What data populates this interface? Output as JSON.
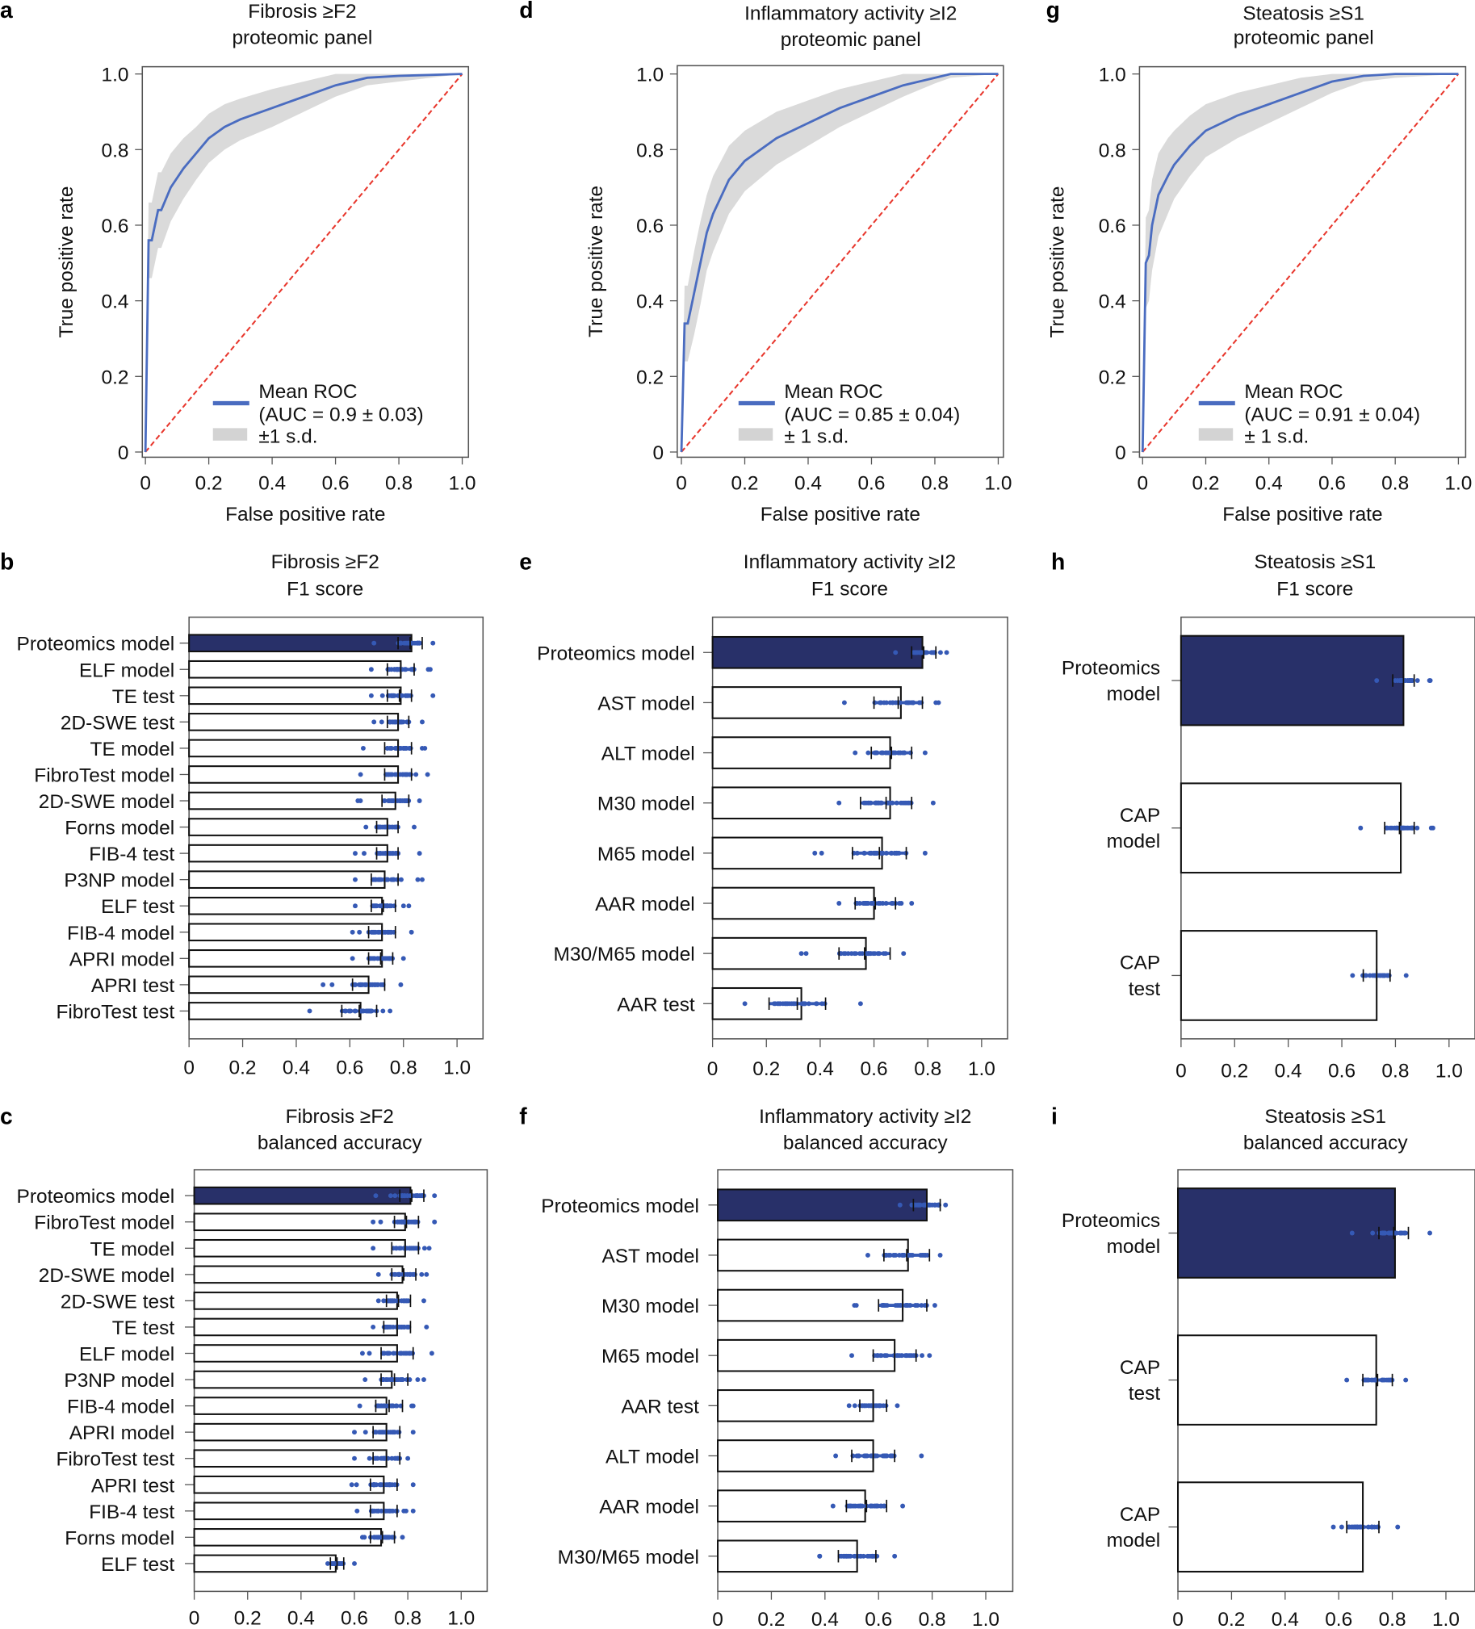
{
  "colors": {
    "bar_highlight": "#283069",
    "points": "#3559b5",
    "mean_roc": "#4a6cc0",
    "sd_band": "#d3d3d3",
    "chance_line": "#e8372d"
  },
  "chart_data": [
    {
      "panel_label": "a",
      "type": "line",
      "title": [
        "Fibrosis ≥F2",
        "proteomic panel"
      ],
      "xlabel": "False positive rate",
      "ylabel": "True positive rate",
      "xlim": [
        0,
        1
      ],
      "ylim": [
        0,
        1
      ],
      "xticks": [
        "0",
        "0.2",
        "0.4",
        "0.6",
        "0.8",
        "1.0"
      ],
      "yticks": [
        "0",
        "0.2",
        "0.4",
        "0.6",
        "0.8",
        "1.0"
      ],
      "chance_line": true,
      "series": [
        {
          "name": "Mean ROC",
          "x": [
            0,
            0.01,
            0.02,
            0.03,
            0.04,
            0.05,
            0.08,
            0.12,
            0.16,
            0.2,
            0.25,
            0.3,
            0.4,
            0.5,
            0.6,
            0.7,
            0.8,
            1.0
          ],
          "y": [
            0,
            0.56,
            0.56,
            0.6,
            0.64,
            0.64,
            0.7,
            0.75,
            0.79,
            0.83,
            0.86,
            0.88,
            0.91,
            0.94,
            0.97,
            0.99,
            0.995,
            1.0
          ],
          "sd": [
            0,
            0.1,
            0.1,
            0.1,
            0.1,
            0.1,
            0.09,
            0.08,
            0.07,
            0.065,
            0.06,
            0.055,
            0.05,
            0.04,
            0.03,
            0.02,
            0.015,
            0
          ]
        }
      ],
      "legend": {
        "line": "Mean ROC",
        "auc": "(AUC = 0.9 ± 0.03)",
        "band": "±1 s.d."
      }
    },
    {
      "panel_label": "d",
      "type": "line",
      "title": [
        "Inflammatory activity ≥I2",
        "proteomic panel"
      ],
      "xlabel": "False positive rate",
      "ylabel": "True positive rate",
      "xlim": [
        0,
        1
      ],
      "ylim": [
        0,
        1
      ],
      "xticks": [
        "0",
        "0.2",
        "0.4",
        "0.6",
        "0.8",
        "1.0"
      ],
      "yticks": [
        "0",
        "0.2",
        "0.4",
        "0.6",
        "0.8",
        "1.0"
      ],
      "chance_line": true,
      "series": [
        {
          "name": "Mean ROC",
          "x": [
            0,
            0.01,
            0.02,
            0.04,
            0.06,
            0.08,
            0.1,
            0.15,
            0.2,
            0.3,
            0.4,
            0.5,
            0.6,
            0.7,
            0.8,
            0.85,
            1.0
          ],
          "y": [
            0,
            0.34,
            0.34,
            0.42,
            0.5,
            0.58,
            0.63,
            0.72,
            0.77,
            0.83,
            0.87,
            0.91,
            0.94,
            0.97,
            0.99,
            1.0,
            1.0
          ],
          "sd": [
            0,
            0.1,
            0.1,
            0.11,
            0.11,
            0.1,
            0.1,
            0.09,
            0.08,
            0.07,
            0.06,
            0.05,
            0.04,
            0.03,
            0.015,
            0.01,
            0
          ]
        }
      ],
      "legend": {
        "line": "Mean ROC",
        "auc": "(AUC = 0.85 ± 0.04)",
        "band": "± 1 s.d."
      }
    },
    {
      "panel_label": "g",
      "type": "line",
      "title": [
        "Steatosis ≥S1",
        "proteomic panel"
      ],
      "xlabel": "False positive rate",
      "ylabel": "True positive rate",
      "xlim": [
        0,
        1
      ],
      "ylim": [
        0,
        1
      ],
      "xticks": [
        "0",
        "0.2",
        "0.4",
        "0.6",
        "0.8",
        "1.0"
      ],
      "yticks": [
        "0",
        "0.2",
        "0.4",
        "0.6",
        "0.8",
        "1.0"
      ],
      "chance_line": true,
      "series": [
        {
          "name": "Mean ROC",
          "x": [
            0,
            0.01,
            0.02,
            0.03,
            0.05,
            0.08,
            0.1,
            0.15,
            0.2,
            0.3,
            0.4,
            0.5,
            0.6,
            0.7,
            0.8,
            1.0
          ],
          "y": [
            0,
            0.5,
            0.52,
            0.6,
            0.68,
            0.73,
            0.76,
            0.81,
            0.85,
            0.89,
            0.92,
            0.95,
            0.98,
            0.995,
            1.0,
            1.0
          ],
          "sd": [
            0,
            0.12,
            0.12,
            0.12,
            0.11,
            0.1,
            0.09,
            0.08,
            0.07,
            0.06,
            0.05,
            0.04,
            0.03,
            0.015,
            0.01,
            0
          ]
        }
      ],
      "legend": {
        "line": "Mean ROC",
        "auc": "(AUC = 0.91 ± 0.04)",
        "band": "± 1 s.d."
      }
    },
    {
      "panel_label": "b",
      "type": "bar",
      "orientation": "horizontal",
      "title": [
        "Fibrosis ≥F2",
        "F1 score"
      ],
      "xlim": [
        0,
        1
      ],
      "xticks": [
        "0",
        "0.2",
        "0.4",
        "0.6",
        "0.8",
        "1.0"
      ],
      "categories": [
        "Proteomics model",
        "ELF model",
        "TE test",
        "2D-SWE test",
        "TE model",
        "FibroTest model",
        "2D-SWE model",
        "Forns model",
        "FIB-4 test",
        "P3NP model",
        "ELF test",
        "FIB-4 model",
        "APRI model",
        "APRI test",
        "FibroTest test"
      ],
      "values": [
        0.83,
        0.79,
        0.79,
        0.78,
        0.78,
        0.78,
        0.77,
        0.74,
        0.74,
        0.73,
        0.72,
        0.72,
        0.72,
        0.67,
        0.64
      ],
      "sd_ranges": [
        [
          0.78,
          0.87
        ],
        [
          0.74,
          0.84
        ],
        [
          0.74,
          0.83
        ],
        [
          0.74,
          0.82
        ],
        [
          0.73,
          0.83
        ],
        [
          0.73,
          0.83
        ],
        [
          0.72,
          0.82
        ],
        [
          0.7,
          0.78
        ],
        [
          0.7,
          0.78
        ],
        [
          0.68,
          0.78
        ],
        [
          0.68,
          0.77
        ],
        [
          0.67,
          0.77
        ],
        [
          0.67,
          0.76
        ],
        [
          0.61,
          0.73
        ],
        [
          0.57,
          0.7
        ]
      ],
      "point_ranges": [
        [
          0.69,
          0.91
        ],
        [
          0.68,
          0.9
        ],
        [
          0.68,
          0.91
        ],
        [
          0.69,
          0.87
        ],
        [
          0.65,
          0.88
        ],
        [
          0.64,
          0.89
        ],
        [
          0.63,
          0.86
        ],
        [
          0.66,
          0.84
        ],
        [
          0.62,
          0.86
        ],
        [
          0.62,
          0.87
        ],
        [
          0.62,
          0.82
        ],
        [
          0.61,
          0.83
        ],
        [
          0.61,
          0.8
        ],
        [
          0.5,
          0.79
        ],
        [
          0.45,
          0.75
        ]
      ]
    },
    {
      "panel_label": "c",
      "type": "bar",
      "orientation": "horizontal",
      "title": [
        "Fibrosis ≥F2",
        "balanced accuracy"
      ],
      "xlim": [
        0,
        1
      ],
      "xticks": [
        "0",
        "0.2",
        "0.4",
        "0.6",
        "0.8",
        "1.0"
      ],
      "categories": [
        "Proteomics model",
        "FibroTest model",
        "TE model",
        "2D-SWE model",
        "2D-SWE test",
        "TE test",
        "ELF model",
        "P3NP model",
        "FIB-4 model",
        "APRI model",
        "FibroTest test",
        "APRI test",
        "FIB-4 test",
        "Forns model",
        "ELF test"
      ],
      "values": [
        0.81,
        0.79,
        0.79,
        0.78,
        0.76,
        0.76,
        0.76,
        0.74,
        0.72,
        0.72,
        0.72,
        0.71,
        0.71,
        0.7,
        0.53
      ],
      "sd_ranges": [
        [
          0.77,
          0.86
        ],
        [
          0.75,
          0.84
        ],
        [
          0.74,
          0.84
        ],
        [
          0.74,
          0.83
        ],
        [
          0.72,
          0.81
        ],
        [
          0.71,
          0.81
        ],
        [
          0.7,
          0.82
        ],
        [
          0.7,
          0.8
        ],
        [
          0.68,
          0.78
        ],
        [
          0.67,
          0.77
        ],
        [
          0.67,
          0.77
        ],
        [
          0.66,
          0.76
        ],
        [
          0.66,
          0.76
        ],
        [
          0.66,
          0.75
        ],
        [
          0.51,
          0.56
        ]
      ],
      "point_ranges": [
        [
          0.68,
          0.9
        ],
        [
          0.67,
          0.9
        ],
        [
          0.67,
          0.88
        ],
        [
          0.69,
          0.87
        ],
        [
          0.69,
          0.86
        ],
        [
          0.67,
          0.87
        ],
        [
          0.63,
          0.89
        ],
        [
          0.64,
          0.86
        ],
        [
          0.62,
          0.82
        ],
        [
          0.6,
          0.82
        ],
        [
          0.6,
          0.8
        ],
        [
          0.59,
          0.82
        ],
        [
          0.61,
          0.82
        ],
        [
          0.63,
          0.78
        ],
        [
          0.5,
          0.6
        ]
      ]
    },
    {
      "panel_label": "e",
      "type": "bar",
      "orientation": "horizontal",
      "title": [
        "Inflammatory activity ≥I2",
        "F1 score"
      ],
      "xlim": [
        0,
        1
      ],
      "xticks": [
        "0",
        "0.2",
        "0.4",
        "0.6",
        "0.8",
        "1.0"
      ],
      "categories": [
        "Proteomics model",
        "AST model",
        "ALT model",
        "M30 model",
        "M65 model",
        "AAR model",
        "M30/M65 model",
        "AAR test"
      ],
      "values": [
        0.78,
        0.7,
        0.66,
        0.66,
        0.63,
        0.6,
        0.57,
        0.33
      ],
      "sd_ranges": [
        [
          0.74,
          0.83
        ],
        [
          0.6,
          0.78
        ],
        [
          0.59,
          0.74
        ],
        [
          0.55,
          0.74
        ],
        [
          0.52,
          0.72
        ],
        [
          0.53,
          0.68
        ],
        [
          0.47,
          0.66
        ],
        [
          0.21,
          0.42
        ]
      ],
      "point_ranges": [
        [
          0.68,
          0.87
        ],
        [
          0.49,
          0.84
        ],
        [
          0.53,
          0.79
        ],
        [
          0.47,
          0.82
        ],
        [
          0.38,
          0.79
        ],
        [
          0.47,
          0.74
        ],
        [
          0.33,
          0.71
        ],
        [
          0.12,
          0.55
        ]
      ]
    },
    {
      "panel_label": "f",
      "type": "bar",
      "orientation": "horizontal",
      "title": [
        "Inflammatory activity ≥I2",
        "balanced accuracy"
      ],
      "xlim": [
        0,
        1
      ],
      "xticks": [
        "0",
        "0.2",
        "0.4",
        "0.6",
        "0.8",
        "1.0"
      ],
      "categories": [
        "Proteomics model",
        "AST model",
        "M30 model",
        "M65 model",
        "AAR test",
        "ALT model",
        "AAR model",
        "M30/M65 model"
      ],
      "values": [
        0.78,
        0.71,
        0.69,
        0.66,
        0.58,
        0.58,
        0.55,
        0.52
      ],
      "sd_ranges": [
        [
          0.73,
          0.83
        ],
        [
          0.62,
          0.79
        ],
        [
          0.6,
          0.78
        ],
        [
          0.58,
          0.74
        ],
        [
          0.53,
          0.63
        ],
        [
          0.5,
          0.66
        ],
        [
          0.48,
          0.63
        ],
        [
          0.45,
          0.59
        ]
      ],
      "point_ranges": [
        [
          0.68,
          0.85
        ],
        [
          0.56,
          0.83
        ],
        [
          0.51,
          0.81
        ],
        [
          0.5,
          0.79
        ],
        [
          0.49,
          0.67
        ],
        [
          0.44,
          0.76
        ],
        [
          0.43,
          0.69
        ],
        [
          0.38,
          0.66
        ]
      ]
    },
    {
      "panel_label": "h",
      "type": "bar",
      "orientation": "horizontal",
      "title": [
        "Steatosis ≥S1",
        "F1 score"
      ],
      "xlim": [
        0,
        1
      ],
      "xticks": [
        "0",
        "0.2",
        "0.4",
        "0.6",
        "0.8",
        "1.0"
      ],
      "categories": [
        "Proteomics model",
        "CAP model",
        "CAP test"
      ],
      "values": [
        0.83,
        0.82,
        0.73
      ],
      "sd_ranges": [
        [
          0.79,
          0.87
        ],
        [
          0.76,
          0.87
        ],
        [
          0.68,
          0.78
        ]
      ],
      "point_ranges": [
        [
          0.73,
          0.93
        ],
        [
          0.67,
          0.94
        ],
        [
          0.64,
          0.84
        ]
      ]
    },
    {
      "panel_label": "i",
      "type": "bar",
      "orientation": "horizontal",
      "title": [
        "Steatosis ≥S1",
        "balanced accuracy"
      ],
      "xlim": [
        0,
        1
      ],
      "xticks": [
        "0",
        "0.2",
        "0.4",
        "0.6",
        "0.8",
        "1.0"
      ],
      "categories": [
        "Proteomics model",
        "CAP test",
        "CAP model"
      ],
      "values": [
        0.81,
        0.74,
        0.69
      ],
      "sd_ranges": [
        [
          0.75,
          0.86
        ],
        [
          0.69,
          0.8
        ],
        [
          0.63,
          0.75
        ]
      ],
      "point_ranges": [
        [
          0.65,
          0.94
        ],
        [
          0.63,
          0.85
        ],
        [
          0.58,
          0.82
        ]
      ]
    }
  ]
}
